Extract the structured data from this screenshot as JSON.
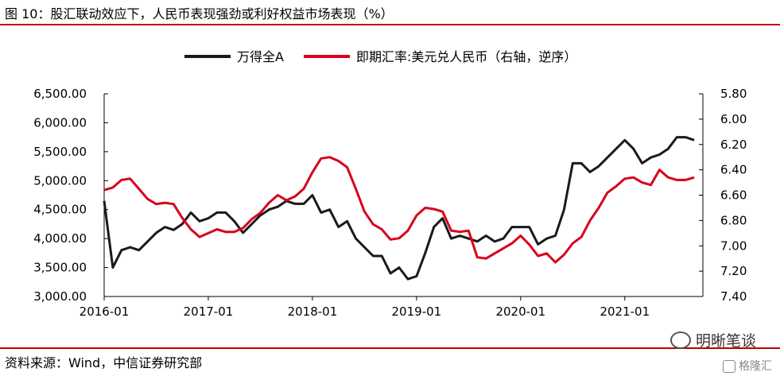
{
  "header": {
    "title": "图 10：股汇联动效应下，人民币表现强劲或利好权益市场表现（%）"
  },
  "footer": {
    "source": "资料来源：Wind，中信证券研究部",
    "watermark": "明晰笔谈",
    "watermark2": "格隆汇"
  },
  "colors": {
    "rule": "#c00000",
    "series_black": "#1a1a1a",
    "series_red": "#d9001b"
  },
  "chart_data": {
    "type": "line",
    "legend_position": "top-center",
    "grid": false,
    "x_ticks": [
      "2016-01",
      "2017-01",
      "2018-01",
      "2019-01",
      "2020-01",
      "2021-01"
    ],
    "xlim": [
      "2016-01",
      "2021-09"
    ],
    "ylim_left": [
      3000,
      6500
    ],
    "yticks_left": [
      "6,500.00",
      "6,000.00",
      "5,500.00",
      "5,000.00",
      "4,500.00",
      "4,000.00",
      "3,500.00",
      "3,000.00"
    ],
    "ylim_right": [
      7.4,
      5.8
    ],
    "yticks_right": [
      "5.80",
      "6.00",
      "6.20",
      "6.40",
      "6.60",
      "6.80",
      "7.00",
      "7.20",
      "7.40"
    ],
    "right_axis_inverted": true,
    "series": [
      {
        "name": "万得全A",
        "axis": "left",
        "x": [
          "2016-01",
          "2016-02",
          "2016-03",
          "2016-04",
          "2016-05",
          "2016-06",
          "2016-07",
          "2016-08",
          "2016-09",
          "2016-10",
          "2016-11",
          "2016-12",
          "2017-01",
          "2017-02",
          "2017-03",
          "2017-04",
          "2017-05",
          "2017-06",
          "2017-07",
          "2017-08",
          "2017-09",
          "2017-10",
          "2017-11",
          "2017-12",
          "2018-01",
          "2018-02",
          "2018-03",
          "2018-04",
          "2018-05",
          "2018-06",
          "2018-07",
          "2018-08",
          "2018-09",
          "2018-10",
          "2018-11",
          "2018-12",
          "2019-01",
          "2019-02",
          "2019-03",
          "2019-04",
          "2019-05",
          "2019-06",
          "2019-07",
          "2019-08",
          "2019-09",
          "2019-10",
          "2019-11",
          "2019-12",
          "2020-01",
          "2020-02",
          "2020-03",
          "2020-04",
          "2020-05",
          "2020-06",
          "2020-07",
          "2020-08",
          "2020-09",
          "2020-10",
          "2020-11",
          "2020-12",
          "2021-01",
          "2021-02",
          "2021-03",
          "2021-04",
          "2021-05",
          "2021-06",
          "2021-07",
          "2021-08",
          "2021-09"
        ],
        "values": [
          4650,
          3500,
          3800,
          3850,
          3800,
          3950,
          4100,
          4200,
          4150,
          4250,
          4450,
          4300,
          4350,
          4450,
          4450,
          4300,
          4100,
          4250,
          4400,
          4500,
          4550,
          4650,
          4600,
          4600,
          4750,
          4450,
          4500,
          4200,
          4300,
          4000,
          3850,
          3700,
          3700,
          3400,
          3500,
          3300,
          3350,
          3750,
          4200,
          4350,
          4000,
          4050,
          4000,
          3950,
          4050,
          3950,
          4000,
          4200,
          4200,
          4200,
          3900,
          4000,
          4050,
          4500,
          5300,
          5300,
          5150,
          5250,
          5400,
          5550,
          5700,
          5550,
          5300,
          5400,
          5450,
          5550,
          5750,
          5750,
          5700
        ]
      },
      {
        "name": "即期汇率:美元兑人民币（右轴，逆序）",
        "axis": "right",
        "x": [
          "2016-01",
          "2016-02",
          "2016-03",
          "2016-04",
          "2016-05",
          "2016-06",
          "2016-07",
          "2016-08",
          "2016-09",
          "2016-10",
          "2016-11",
          "2016-12",
          "2017-01",
          "2017-02",
          "2017-03",
          "2017-04",
          "2017-05",
          "2017-06",
          "2017-07",
          "2017-08",
          "2017-09",
          "2017-10",
          "2017-11",
          "2017-12",
          "2018-01",
          "2018-02",
          "2018-03",
          "2018-04",
          "2018-05",
          "2018-06",
          "2018-07",
          "2018-08",
          "2018-09",
          "2018-10",
          "2018-11",
          "2018-12",
          "2019-01",
          "2019-02",
          "2019-03",
          "2019-04",
          "2019-05",
          "2019-06",
          "2019-07",
          "2019-08",
          "2019-09",
          "2019-10",
          "2019-11",
          "2019-12",
          "2020-01",
          "2020-02",
          "2020-03",
          "2020-04",
          "2020-05",
          "2020-06",
          "2020-07",
          "2020-08",
          "2020-09",
          "2020-10",
          "2020-11",
          "2020-12",
          "2021-01",
          "2021-02",
          "2021-03",
          "2021-04",
          "2021-05",
          "2021-06",
          "2021-07",
          "2021-08",
          "2021-09"
        ],
        "values": [
          6.56,
          6.54,
          6.48,
          6.47,
          6.55,
          6.63,
          6.67,
          6.66,
          6.67,
          6.78,
          6.87,
          6.93,
          6.9,
          6.87,
          6.89,
          6.89,
          6.86,
          6.79,
          6.74,
          6.66,
          6.6,
          6.64,
          6.61,
          6.55,
          6.42,
          6.31,
          6.3,
          6.33,
          6.38,
          6.55,
          6.73,
          6.83,
          6.87,
          6.95,
          6.94,
          6.88,
          6.76,
          6.7,
          6.71,
          6.73,
          6.88,
          6.89,
          6.88,
          7.09,
          7.1,
          7.06,
          7.02,
          6.98,
          6.92,
          6.99,
          7.08,
          7.06,
          7.13,
          7.07,
          6.98,
          6.93,
          6.8,
          6.7,
          6.58,
          6.53,
          6.47,
          6.46,
          6.5,
          6.52,
          6.4,
          6.46,
          6.48,
          6.48,
          6.46
        ]
      }
    ]
  }
}
